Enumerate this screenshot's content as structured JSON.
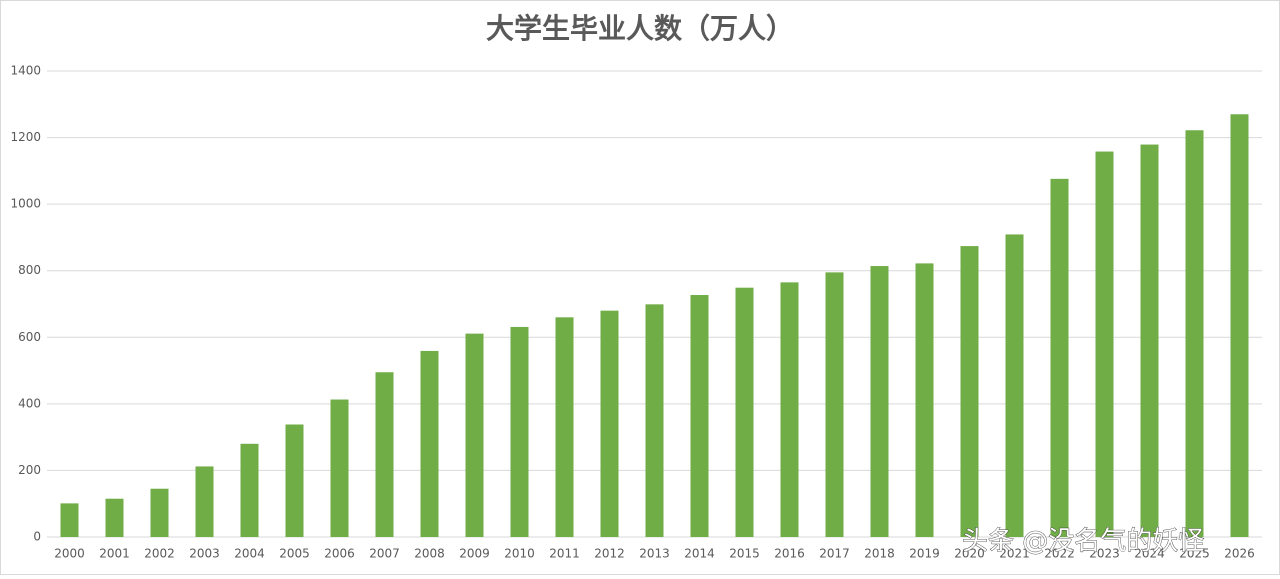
{
  "chart_data": {
    "type": "bar",
    "title": "大学生毕业人数（万人）",
    "categories": [
      "2000",
      "2001",
      "2002",
      "2003",
      "2004",
      "2005",
      "2006",
      "2007",
      "2008",
      "2009",
      "2010",
      "2011",
      "2012",
      "2013",
      "2014",
      "2015",
      "2016",
      "2017",
      "2018",
      "2019",
      "2020",
      "2021",
      "2022",
      "2023",
      "2024",
      "2025",
      "2026"
    ],
    "values": [
      101,
      115,
      145,
      212,
      280,
      338,
      413,
      495,
      559,
      611,
      631,
      660,
      680,
      699,
      727,
      749,
      765,
      795,
      814,
      822,
      874,
      909,
      1076,
      1158,
      1179,
      1222,
      1270
    ],
    "color": "#70ad47",
    "ylim": [
      0,
      1400
    ],
    "yticks": [
      0,
      200,
      400,
      600,
      800,
      1000,
      1200,
      1400
    ],
    "grid": true
  },
  "watermark": "头条 @没名气的妖怪"
}
